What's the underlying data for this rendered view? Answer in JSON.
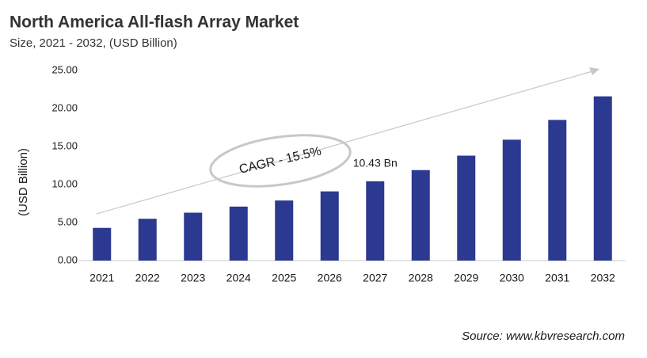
{
  "chart_data": {
    "type": "bar",
    "title": "North America All-flash Array Market",
    "subtitle": "Size, 2021 - 2032, (USD Billion)",
    "y_label": "(USD Billion)",
    "annotation": "CAGR - 15.5%",
    "source": "Source: www.kbvresearch.com",
    "categories": [
      "2021",
      "2022",
      "2023",
      "2024",
      "2025",
      "2026",
      "2027",
      "2028",
      "2029",
      "2030",
      "2031",
      "2032"
    ],
    "values": [
      4.3,
      5.5,
      6.3,
      7.1,
      7.9,
      9.1,
      10.43,
      11.9,
      13.8,
      15.9,
      18.5,
      21.6
    ],
    "value_labels": [
      null,
      null,
      null,
      null,
      null,
      null,
      "10.43 Bn",
      null,
      null,
      null,
      null,
      null
    ],
    "color": "#2b3990",
    "ylim": [
      0,
      25
    ],
    "yticks": [
      {
        "value": 0,
        "label": "0.00"
      },
      {
        "value": 5,
        "label": "5.00"
      },
      {
        "value": 10,
        "label": "10.00"
      },
      {
        "value": 15,
        "label": "15.00"
      },
      {
        "value": 20,
        "label": "20.00"
      },
      {
        "value": 25,
        "label": "25.00"
      }
    ],
    "grid": false
  }
}
